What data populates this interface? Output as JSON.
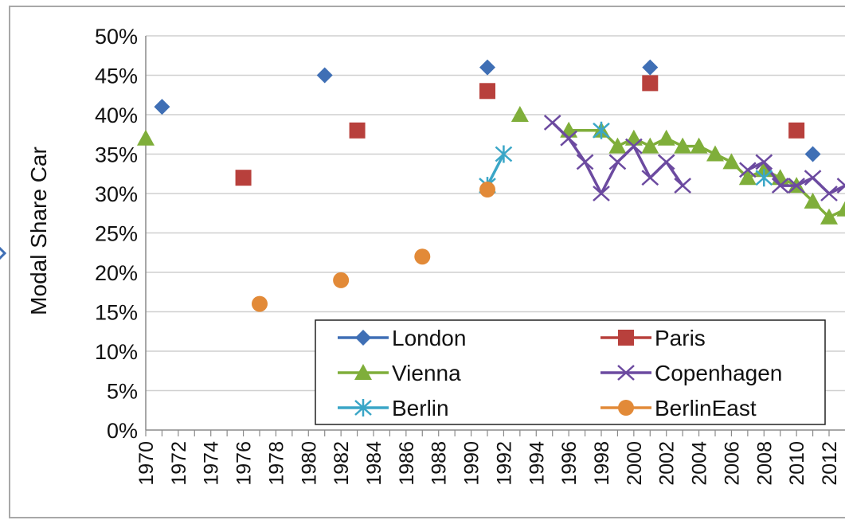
{
  "chart_data": {
    "type": "scatter",
    "title": "",
    "xlabel": "",
    "ylabel": "Modal Share Car",
    "x_ticks": [
      "1970",
      "1972",
      "1974",
      "1976",
      "1978",
      "1980",
      "1982",
      "1984",
      "1986",
      "1988",
      "1990",
      "1992",
      "1994",
      "1996",
      "1998",
      "2000",
      "2002",
      "2004",
      "2006",
      "2008",
      "2010",
      "2012"
    ],
    "y_ticks": [
      "0%",
      "5%",
      "10%",
      "15%",
      "20%",
      "25%",
      "30%",
      "35%",
      "40%",
      "45%",
      "50%"
    ],
    "xlim": [
      1970,
      2012
    ],
    "ylim": [
      0,
      50
    ],
    "grid": true,
    "legend_position": "bottom-right",
    "series": [
      {
        "name": "London",
        "marker": "diamond",
        "color": "#3f6fb5",
        "connect": true,
        "points": [
          [
            1971,
            41
          ],
          [
            1981,
            45
          ],
          [
            1991,
            46
          ],
          [
            2001,
            46
          ],
          [
            2011,
            35
          ]
        ]
      },
      {
        "name": "Paris",
        "marker": "square",
        "color": "#b8403c",
        "connect": true,
        "points": [
          [
            1976,
            32
          ],
          [
            1983,
            38
          ],
          [
            1991,
            43
          ],
          [
            2001,
            44
          ],
          [
            2010,
            38
          ]
        ]
      },
      {
        "name": "Vienna",
        "marker": "triangle",
        "color": "#7fae3a",
        "connect": true,
        "points": [
          [
            1970,
            37
          ],
          [
            1993,
            40
          ],
          [
            1996,
            38
          ],
          [
            1998,
            38
          ],
          [
            1999,
            36
          ],
          [
            2000,
            37
          ],
          [
            2001,
            36
          ],
          [
            2002,
            37
          ],
          [
            2003,
            36
          ],
          [
            2004,
            36
          ],
          [
            2005,
            35
          ],
          [
            2006,
            34
          ],
          [
            2007,
            32
          ],
          [
            2008,
            33
          ],
          [
            2009,
            32
          ],
          [
            2010,
            31
          ],
          [
            2011,
            29
          ],
          [
            2012,
            27
          ],
          [
            2013,
            28
          ]
        ]
      },
      {
        "name": "Copenhagen",
        "marker": "x",
        "color": "#6c4aa0",
        "connect": true,
        "points": [
          [
            1995,
            39
          ],
          [
            1996,
            37
          ],
          [
            1997,
            34
          ],
          [
            1998,
            30
          ],
          [
            1999,
            34
          ],
          [
            2000,
            36
          ],
          [
            2001,
            32
          ],
          [
            2002,
            34
          ],
          [
            2003,
            31
          ],
          [
            2007,
            33
          ],
          [
            2008,
            34
          ],
          [
            2009,
            31
          ],
          [
            2010,
            31
          ],
          [
            2011,
            32
          ],
          [
            2012,
            30
          ],
          [
            2013,
            31
          ]
        ]
      },
      {
        "name": "Berlin",
        "marker": "asterisk",
        "color": "#3aa6c7",
        "connect": true,
        "points": [
          [
            1991,
            31
          ],
          [
            1992,
            35
          ],
          [
            1998,
            38
          ],
          [
            2008,
            32
          ]
        ]
      },
      {
        "name": "BerlinEast",
        "marker": "circle",
        "color": "#e28a38",
        "connect": false,
        "points": [
          [
            1977,
            16
          ],
          [
            1982,
            19
          ],
          [
            1987,
            22
          ],
          [
            1991,
            30.5
          ]
        ]
      }
    ]
  }
}
